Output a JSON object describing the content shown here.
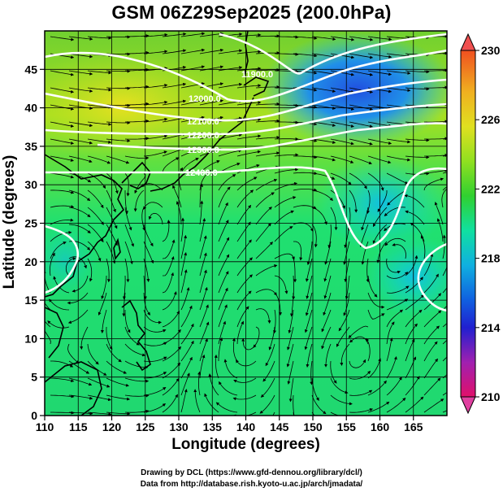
{
  "title": "GSM 06Z29Sep2025 (200.0hPa)",
  "x_axis_label": "Longitude (degrees)",
  "y_axis_label": "Latitude  (degrees)",
  "credit_line_1": "Drawing by DCL (https://www.gfd-dennou.org/library/dcl/)",
  "credit_line_2": "Data from http://database.rish.kyoto-u.ac.jp/arch/jmadata/",
  "x_ticks": [
    "110",
    "115",
    "120",
    "125",
    "130",
    "135",
    "140",
    "145",
    "150",
    "155",
    "160",
    "165"
  ],
  "y_ticks": [
    "0",
    "5",
    "10",
    "15",
    "20",
    "25",
    "30",
    "35",
    "40",
    "45"
  ],
  "colorbar": {
    "tick_labels": [
      "230",
      "226",
      "222",
      "218",
      "214",
      "210"
    ],
    "colors": [
      "#e0106a",
      "#a020b0",
      "#2020d0",
      "#1060e0",
      "#10b0e0",
      "#10e0b0",
      "#10d060",
      "#40d020",
      "#90e020",
      "#e0e020",
      "#f0b020",
      "#f05020"
    ]
  },
  "contour_labels": [
    "11900.0",
    "12000.0",
    "12100.0",
    "12200.0",
    "12300.0",
    "12400.0"
  ],
  "chart_data": {
    "type": "heatmap",
    "title": "GSM 06Z29Sep2025 (200.0hPa)",
    "xlabel": "Longitude (degrees)",
    "ylabel": "Latitude  (degrees)",
    "xlim": [
      110,
      170
    ],
    "ylim": [
      0,
      50
    ],
    "colorbar_range": [
      210,
      230
    ],
    "colorbar_ticks": [
      210,
      214,
      218,
      222,
      226,
      230
    ],
    "contour_levels": [
      11900,
      12000,
      12100,
      12200,
      12300,
      12400
    ],
    "grid": true
  }
}
